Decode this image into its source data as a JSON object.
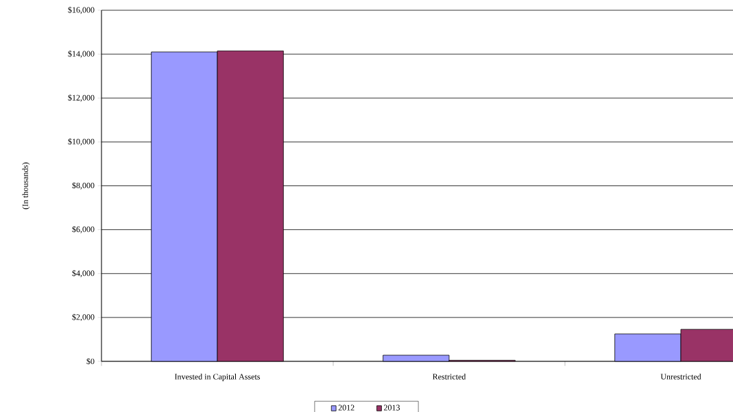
{
  "chart_data": {
    "type": "bar",
    "ylabel": "(In thousands)",
    "categories": [
      "Invested in Capital Assets",
      "Restricted",
      "Unrestricted"
    ],
    "series": [
      {
        "name": "2012",
        "color": "#9999ff",
        "values": [
          14100,
          280,
          1250
        ]
      },
      {
        "name": "2013",
        "color": "#993366",
        "values": [
          14150,
          50,
          1460
        ]
      }
    ],
    "ylim": [
      0,
      16000
    ],
    "yticks": [
      {
        "value": 0,
        "label": "$0"
      },
      {
        "value": 2000,
        "label": "$2,000"
      },
      {
        "value": 4000,
        "label": "$4,000"
      },
      {
        "value": 6000,
        "label": "$6,000"
      },
      {
        "value": 8000,
        "label": "$8,000"
      },
      {
        "value": 10000,
        "label": "$10,000"
      },
      {
        "value": 12000,
        "label": "$12,000"
      },
      {
        "value": 14000,
        "label": "$14,000"
      },
      {
        "value": 16000,
        "label": "$16,000"
      }
    ],
    "grid": "y",
    "legend": "bottom"
  }
}
